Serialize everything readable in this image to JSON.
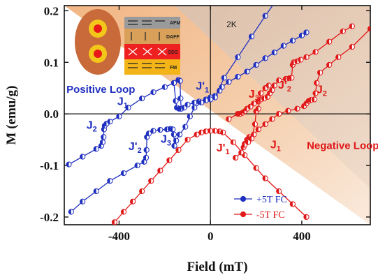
{
  "chart_data": {
    "type": "scatter",
    "title": "",
    "xlabel": "Field (mT)",
    "ylabel": "M (emu/g)",
    "xlim": [
      -640,
      700
    ],
    "ylim": [
      -0.215,
      0.21
    ],
    "xticks": [
      -400,
      0,
      400
    ],
    "xtick_labels": [
      "-400",
      "0",
      "400"
    ],
    "yticks": [
      0.2,
      0.1,
      0.0,
      -0.1,
      -0.2
    ],
    "ytick_labels": [
      "0.2",
      "0.1",
      "0.0",
      "-0.1",
      "-0.2"
    ],
    "grid": false,
    "legend_position": "bottom-right",
    "temperature_label": "2K",
    "series": [
      {
        "name": "+5T FC",
        "color": "#1f2fbf",
        "segments": [
          [
            [
              -620,
              -0.098
            ],
            [
              -560,
              -0.083
            ],
            [
              -500,
              -0.068
            ],
            [
              -478,
              -0.062
            ],
            [
              -472,
              -0.055
            ],
            [
              -468,
              -0.045
            ],
            [
              -466,
              -0.03
            ],
            [
              -463,
              -0.023
            ],
            [
              -455,
              -0.019
            ],
            [
              -440,
              -0.015
            ],
            [
              -400,
              -0.005
            ],
            [
              -360,
              0.012
            ],
            [
              -300,
              0.03
            ],
            [
              -250,
              0.042
            ],
            [
              -200,
              0.052
            ],
            [
              -160,
              0.06
            ],
            [
              -140,
              0.066
            ],
            [
              -133,
              0.064
            ],
            [
              -131,
              0.03
            ],
            [
              -128,
              0.01
            ]
          ],
          [
            [
              -160,
              0.06
            ],
            [
              -152,
              0.025
            ],
            [
              -147,
              0.012
            ],
            [
              -137,
              0.01
            ],
            [
              -128,
              0.01
            ],
            [
              -115,
              0.012
            ],
            [
              -100,
              0.018
            ],
            [
              -70,
              0.022
            ],
            [
              -50,
              0.024
            ],
            [
              -20,
              0.028
            ],
            [
              0,
              0.032
            ],
            [
              20,
              0.035
            ],
            [
              40,
              0.045
            ],
            [
              50,
              0.052
            ],
            [
              80,
              0.062
            ],
            [
              120,
              0.072
            ],
            [
              160,
              0.082
            ],
            [
              200,
              0.095
            ],
            [
              240,
              0.108
            ],
            [
              280,
              0.119
            ],
            [
              320,
              0.132
            ],
            [
              360,
              0.142
            ],
            [
              400,
              0.152
            ],
            [
              420,
              0.158
            ]
          ],
          [
            [
              -610,
              -0.19
            ],
            [
              -560,
              -0.17
            ],
            [
              -500,
              -0.15
            ],
            [
              -440,
              -0.13
            ],
            [
              -380,
              -0.115
            ],
            [
              -320,
              -0.1
            ],
            [
              -290,
              -0.093
            ],
            [
              -282,
              -0.085
            ],
            [
              -280,
              -0.07
            ],
            [
              -278,
              -0.045
            ],
            [
              -270,
              -0.038
            ],
            [
              -250,
              -0.033
            ],
            [
              -220,
              -0.031
            ],
            [
              -190,
              -0.03
            ],
            [
              -175,
              -0.029
            ],
            [
              -165,
              -0.03
            ],
            [
              -160,
              -0.04
            ],
            [
              -158,
              -0.062
            ],
            [
              -150,
              -0.052
            ],
            [
              -135,
              -0.04
            ],
            [
              -110,
              -0.025
            ],
            [
              -90,
              -0.005
            ],
            [
              -70,
              0.012
            ],
            [
              -40,
              0.022
            ],
            [
              -20,
              0.026
            ],
            [
              0,
              0.028
            ],
            [
              20,
              0.032
            ],
            [
              60,
              0.07
            ],
            [
              120,
              0.11
            ],
            [
              180,
              0.15
            ],
            [
              240,
              0.19
            ],
            [
              280,
              0.215
            ]
          ]
        ]
      },
      {
        "name": "-5T FC",
        "color": "#e01818",
        "segments": [
          [
            [
              -440,
              -0.23
            ],
            [
              -420,
              -0.21
            ],
            [
              -380,
              -0.19
            ],
            [
              -340,
              -0.17
            ],
            [
              -300,
              -0.15
            ],
            [
              -260,
              -0.13
            ],
            [
              -220,
              -0.11
            ],
            [
              -180,
              -0.09
            ],
            [
              -140,
              -0.07
            ],
            [
              -100,
              -0.05
            ],
            [
              -60,
              -0.04
            ],
            [
              -40,
              -0.036
            ],
            [
              -20,
              -0.034
            ],
            [
              0,
              -0.033
            ],
            [
              20,
              -0.033
            ],
            [
              40,
              -0.034
            ],
            [
              55,
              -0.036
            ],
            [
              100,
              -0.055
            ],
            [
              150,
              -0.08
            ],
            [
              200,
              -0.105
            ],
            [
              240,
              -0.125
            ],
            [
              300,
              -0.15
            ],
            [
              360,
              -0.175
            ],
            [
              420,
              -0.2
            ]
          ],
          [
            [
              80,
              -0.01
            ],
            [
              120,
              0.0
            ],
            [
              130,
              0.0
            ],
            [
              140,
              0.002
            ],
            [
              150,
              0.005
            ],
            [
              160,
              0.01
            ],
            [
              175,
              0.014
            ],
            [
              190,
              0.02
            ],
            [
              210,
              0.024
            ],
            [
              220,
              0.028
            ],
            [
              235,
              0.03
            ],
            [
              250,
              0.033
            ],
            [
              260,
              0.04
            ],
            [
              270,
              0.046
            ],
            [
              280,
              0.055
            ],
            [
              300,
              0.065
            ],
            [
              330,
              0.068
            ],
            [
              345,
              0.069
            ],
            [
              355,
              0.07
            ],
            [
              360,
              0.095
            ],
            [
              365,
              0.1
            ],
            [
              380,
              0.102
            ],
            [
              395,
              0.105
            ],
            [
              420,
              0.11
            ],
            [
              460,
              0.12
            ],
            [
              520,
              0.14
            ],
            [
              580,
              0.16
            ],
            [
              620,
              0.17
            ]
          ],
          [
            [
              110,
              -0.085
            ],
            [
              135,
              -0.075
            ],
            [
              145,
              -0.065
            ],
            [
              150,
              -0.058
            ],
            [
              160,
              -0.05
            ],
            [
              170,
              -0.045
            ],
            [
              190,
              -0.04
            ],
            [
              210,
              -0.03
            ],
            [
              240,
              -0.02
            ],
            [
              270,
              -0.01
            ],
            [
              300,
              0.0
            ],
            [
              340,
              0.006
            ],
            [
              380,
              0.01
            ],
            [
              410,
              0.015
            ],
            [
              420,
              0.02
            ],
            [
              430,
              0.025
            ],
            [
              440,
              0.027
            ],
            [
              455,
              0.028
            ],
            [
              460,
              0.04
            ],
            [
              465,
              0.06
            ],
            [
              480,
              0.08
            ],
            [
              520,
              0.095
            ],
            [
              560,
              0.11
            ],
            [
              620,
              0.13
            ],
            [
              700,
              0.165
            ]
          ],
          [
            [
              150,
              -0.06
            ],
            [
              165,
              -0.055
            ],
            [
              180,
              -0.048
            ],
            [
              195,
              -0.02
            ],
            [
              200,
              0.005
            ],
            [
              210,
              0.01
            ],
            [
              220,
              0.04
            ],
            [
              240,
              0.05
            ],
            [
              255,
              0.055
            ]
          ]
        ]
      }
    ],
    "annotations": [
      {
        "text": "Positive Loop",
        "x": -480,
        "y": 0.041,
        "color": "#1f2fbf"
      },
      {
        "text": "Negative Loop",
        "x": 580,
        "y": -0.068,
        "color": "#e01818"
      },
      {
        "text": "J",
        "sub": "1",
        "x": -385,
        "y": 0.017,
        "color": "#1f2fbf"
      },
      {
        "text": "J",
        "sub": "2",
        "x": -520,
        "y": -0.029,
        "color": "#1f2fbf"
      },
      {
        "text": "J'",
        "sub": "2",
        "x": -330,
        "y": -0.07,
        "color": "#1f2fbf"
      },
      {
        "text": "J",
        "sub": "3",
        "x": -195,
        "y": -0.056,
        "color": "#1f2fbf"
      },
      {
        "text": "J'",
        "sub": "1",
        "x": -35,
        "y": 0.047,
        "color": "#1f2fbf"
      },
      {
        "text": "J'",
        "sub": "1",
        "x": 55,
        "y": -0.073,
        "color": "#e01818"
      },
      {
        "text": "J",
        "sub": "3",
        "x": 190,
        "y": 0.031,
        "color": "#e01818"
      },
      {
        "text": "J'",
        "sub": "2",
        "x": 325,
        "y": 0.049,
        "color": "#e01818"
      },
      {
        "text": "J",
        "sub": "2",
        "x": 487,
        "y": 0.04,
        "color": "#e01818"
      },
      {
        "text": "J",
        "sub": "1",
        "x": 285,
        "y": -0.067,
        "color": "#e01818"
      }
    ]
  },
  "inset": {
    "labels": [
      "AFM",
      "DAFF",
      "SSG",
      "FM"
    ],
    "colors": {
      "afm": "#9a9a9a",
      "daff": "#d9a05a",
      "ssg": "#ee2020",
      "fm": "#f2b418",
      "particle": "#c86a3a",
      "core_ring": "#f3c71a",
      "core": "#e81818"
    }
  },
  "legend": {
    "entries": [
      "+5T FC",
      "-5T FC"
    ]
  }
}
